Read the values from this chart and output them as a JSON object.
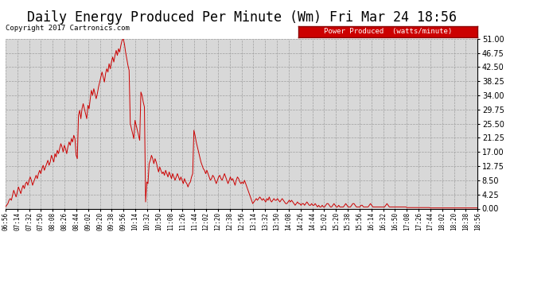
{
  "title": "Daily Energy Produced Per Minute (Wm) Fri Mar 24 18:56",
  "copyright": "Copyright 2017 Cartronics.com",
  "legend_label": "Power Produced  (watts/minute)",
  "legend_bg": "#cc0000",
  "legend_fg": "#ffffff",
  "line_color": "#cc0000",
  "bg_color": "#ffffff",
  "plot_bg": "#d8d8d8",
  "grid_color": "#999999",
  "title_fontsize": 12,
  "ylim": [
    0,
    51
  ],
  "yticks": [
    0.0,
    4.25,
    8.5,
    12.75,
    17.0,
    21.25,
    25.5,
    29.75,
    34.0,
    38.25,
    42.5,
    46.75,
    51.0
  ],
  "xtick_labels": [
    "06:56",
    "07:14",
    "07:32",
    "07:50",
    "08:08",
    "08:26",
    "08:44",
    "09:02",
    "09:20",
    "09:38",
    "09:56",
    "10:14",
    "10:32",
    "10:50",
    "11:08",
    "11:26",
    "11:44",
    "12:02",
    "12:20",
    "12:38",
    "12:56",
    "13:14",
    "13:32",
    "13:50",
    "14:08",
    "14:26",
    "14:44",
    "15:02",
    "15:20",
    "15:38",
    "15:56",
    "16:14",
    "16:32",
    "16:50",
    "17:08",
    "17:26",
    "17:44",
    "18:02",
    "18:20",
    "18:38",
    "18:56"
  ],
  "data_y": [
    0.5,
    1.0,
    1.5,
    2.5,
    3.0,
    2.5,
    4.0,
    5.5,
    4.5,
    3.5,
    5.0,
    6.5,
    5.5,
    4.5,
    6.0,
    7.0,
    6.0,
    7.5,
    8.0,
    7.0,
    8.5,
    9.5,
    8.5,
    7.0,
    8.0,
    9.0,
    10.0,
    9.0,
    10.5,
    11.5,
    10.5,
    12.0,
    13.0,
    11.5,
    12.5,
    13.5,
    14.5,
    13.0,
    14.0,
    16.0,
    15.0,
    14.0,
    16.5,
    15.5,
    17.5,
    16.5,
    18.0,
    19.5,
    18.5,
    17.0,
    19.0,
    18.0,
    16.5,
    18.5,
    20.0,
    19.0,
    21.0,
    20.0,
    22.0,
    21.0,
    16.0,
    15.0,
    28.0,
    29.5,
    27.0,
    30.0,
    31.5,
    30.0,
    28.5,
    27.0,
    31.0,
    30.0,
    33.0,
    35.5,
    34.0,
    36.0,
    34.5,
    33.0,
    34.5,
    36.5,
    38.0,
    39.5,
    41.0,
    39.5,
    38.0,
    40.5,
    42.0,
    41.0,
    43.5,
    42.0,
    44.0,
    45.5,
    44.0,
    46.0,
    47.5,
    46.0,
    48.0,
    47.0,
    49.0,
    50.5,
    51.0,
    49.5,
    47.0,
    45.0,
    43.0,
    41.5,
    25.5,
    24.0,
    22.5,
    21.0,
    26.5,
    25.0,
    23.5,
    22.0,
    20.5,
    35.0,
    34.0,
    32.0,
    30.5,
    2.0,
    8.0,
    7.5,
    13.5,
    14.5,
    16.0,
    15.0,
    13.5,
    15.0,
    14.0,
    12.5,
    11.0,
    12.5,
    11.5,
    10.5,
    11.0,
    10.0,
    11.5,
    10.5,
    9.5,
    11.0,
    10.0,
    9.0,
    10.5,
    9.5,
    8.5,
    9.5,
    10.5,
    9.5,
    8.5,
    9.5,
    8.5,
    7.5,
    9.0,
    8.0,
    7.5,
    6.5,
    7.5,
    8.0,
    9.5,
    10.5,
    23.5,
    22.0,
    20.0,
    18.5,
    17.0,
    15.5,
    14.0,
    13.0,
    12.0,
    11.5,
    10.5,
    11.5,
    10.5,
    9.5,
    8.5,
    9.0,
    10.0,
    9.5,
    8.5,
    7.5,
    8.5,
    9.5,
    10.0,
    9.0,
    8.5,
    9.5,
    10.5,
    9.5,
    8.5,
    7.5,
    8.5,
    9.5,
    8.5,
    9.0,
    8.0,
    7.0,
    8.5,
    9.5,
    9.0,
    8.0,
    7.5,
    8.0,
    7.5,
    8.5,
    7.5,
    6.5,
    5.5,
    4.5,
    3.5,
    2.5,
    1.5,
    2.0,
    2.5,
    3.0,
    2.5,
    3.0,
    3.5,
    3.0,
    2.5,
    3.0,
    2.5,
    2.0,
    3.0,
    2.5,
    3.5,
    2.5,
    2.0,
    2.5,
    3.0,
    2.5,
    2.5,
    3.0,
    2.5,
    2.0,
    2.5,
    3.0,
    2.5,
    2.0,
    1.5,
    1.5,
    2.0,
    2.5,
    2.0,
    2.5,
    2.0,
    1.5,
    1.0,
    1.5,
    2.0,
    1.5,
    1.5,
    1.0,
    1.5,
    1.5,
    1.0,
    1.5,
    2.0,
    1.5,
    1.0,
    1.0,
    1.5,
    1.0,
    1.0,
    1.5,
    1.0,
    0.5,
    1.0,
    0.5,
    0.5,
    1.0,
    0.5,
    0.5,
    1.0,
    1.5,
    1.5,
    1.0,
    0.5,
    0.5,
    1.0,
    1.5,
    1.0,
    0.5,
    0.5,
    1.0,
    0.5,
    0.5,
    0.5,
    0.5,
    1.0,
    1.5,
    1.0,
    0.5,
    0.5,
    0.5,
    1.0,
    1.5,
    1.5,
    1.0,
    0.5,
    0.5,
    0.5,
    0.5,
    1.0,
    1.0,
    0.5,
    0.5,
    0.5,
    0.5,
    0.5,
    1.0,
    1.5,
    1.0,
    0.5,
    0.5,
    0.5,
    0.5,
    0.5,
    0.5,
    0.5,
    0.5,
    0.5,
    0.5,
    0.5,
    1.0,
    1.5,
    1.0,
    0.5,
    0.5,
    0.5,
    0.5,
    0.5,
    0.5,
    0.5,
    0.5,
    0.5,
    0.5,
    0.5,
    0.5,
    0.5,
    0.5,
    0.5,
    0.3,
    0.3,
    0.3,
    0.3,
    0.3,
    0.3,
    0.3,
    0.3,
    0.3,
    0.3,
    0.3,
    0.3,
    0.3,
    0.3,
    0.3,
    0.3,
    0.3,
    0.3,
    0.3,
    0.3,
    0.2,
    0.2,
    0.2,
    0.2,
    0.2,
    0.2,
    0.2,
    0.2,
    0.2,
    0.2,
    0.2,
    0.2,
    0.2,
    0.2,
    0.2,
    0.2,
    0.2,
    0.2,
    0.2,
    0.2,
    0.2,
    0.2,
    0.2,
    0.2,
    0.2,
    0.2,
    0.2,
    0.2,
    0.2,
    0.2,
    0.2,
    0.2,
    0.2,
    0.2,
    0.2,
    0.2,
    0.2,
    0.2,
    0.2,
    0.2,
    0.2
  ]
}
